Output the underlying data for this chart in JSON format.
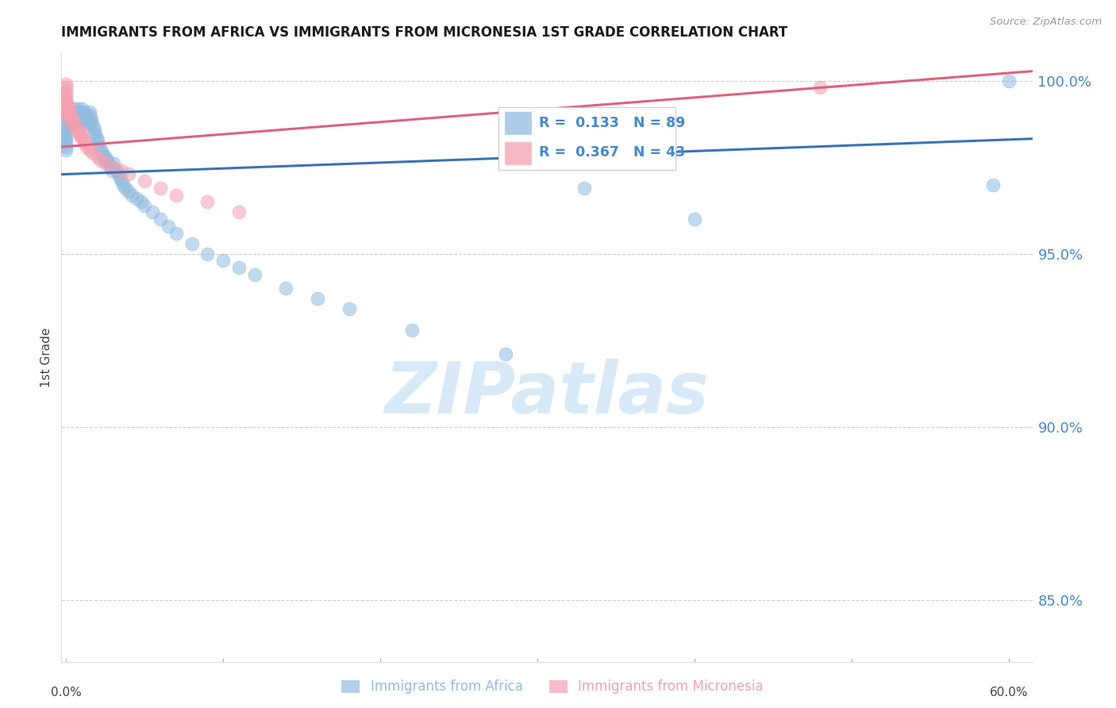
{
  "title": "IMMIGRANTS FROM AFRICA VS IMMIGRANTS FROM MICRONESIA 1ST GRADE CORRELATION CHART",
  "source": "Source: ZipAtlas.com",
  "ylabel": "1st Grade",
  "ytick_values": [
    0.85,
    0.9,
    0.95,
    1.0
  ],
  "ytick_labels": [
    "85.0%",
    "90.0%",
    "95.0%",
    "100.0%"
  ],
  "xlim": [
    -0.003,
    0.615
  ],
  "ylim": [
    0.832,
    1.008
  ],
  "legend_blue_R": "0.133",
  "legend_blue_N": "89",
  "legend_pink_R": "0.367",
  "legend_pink_N": "43",
  "blue_color": "#90bce0",
  "pink_color": "#f4a0b0",
  "blue_line_color": "#3a72b8",
  "pink_line_color": "#e06080",
  "axis_tick_color": "#4488cc",
  "grid_color": "#c8c8c8",
  "title_color": "#1a1a1a",
  "source_color": "#999999",
  "ylabel_color": "#444444",
  "watermark_text": "ZIPatlas",
  "watermark_color": "#d8eaf8",
  "background_color": "#ffffff",
  "legend_label_blue": "Immigrants from Africa",
  "legend_label_pink": "Immigrants from Micronesia",
  "blue_x": [
    0.0,
    0.0,
    0.0,
    0.0,
    0.0,
    0.0,
    0.0,
    0.0,
    0.0,
    0.0,
    0.002,
    0.002,
    0.003,
    0.003,
    0.004,
    0.004,
    0.005,
    0.005,
    0.005,
    0.005,
    0.006,
    0.006,
    0.007,
    0.007,
    0.008,
    0.008,
    0.008,
    0.009,
    0.009,
    0.01,
    0.01,
    0.01,
    0.01,
    0.012,
    0.012,
    0.013,
    0.013,
    0.014,
    0.015,
    0.015,
    0.016,
    0.016,
    0.017,
    0.018,
    0.018,
    0.019,
    0.02,
    0.02,
    0.021,
    0.022,
    0.023,
    0.024,
    0.025,
    0.025,
    0.026,
    0.027,
    0.028,
    0.029,
    0.03,
    0.03,
    0.032,
    0.033,
    0.034,
    0.035,
    0.036,
    0.038,
    0.04,
    0.042,
    0.045,
    0.048,
    0.05,
    0.055,
    0.06,
    0.065,
    0.07,
    0.08,
    0.09,
    0.1,
    0.11,
    0.12,
    0.14,
    0.16,
    0.18,
    0.22,
    0.28,
    0.33,
    0.4,
    0.59,
    0.6
  ],
  "blue_y": [
    0.99,
    0.988,
    0.987,
    0.986,
    0.985,
    0.984,
    0.983,
    0.982,
    0.981,
    0.98,
    0.99,
    0.989,
    0.991,
    0.99,
    0.988,
    0.987,
    0.992,
    0.991,
    0.99,
    0.989,
    0.99,
    0.991,
    0.992,
    0.99,
    0.989,
    0.988,
    0.991,
    0.99,
    0.989,
    0.992,
    0.991,
    0.99,
    0.989,
    0.991,
    0.99,
    0.989,
    0.988,
    0.987,
    0.991,
    0.99,
    0.989,
    0.988,
    0.987,
    0.986,
    0.985,
    0.984,
    0.983,
    0.982,
    0.981,
    0.98,
    0.979,
    0.978,
    0.977,
    0.978,
    0.977,
    0.976,
    0.975,
    0.974,
    0.976,
    0.975,
    0.974,
    0.973,
    0.972,
    0.971,
    0.97,
    0.969,
    0.968,
    0.967,
    0.966,
    0.965,
    0.964,
    0.962,
    0.96,
    0.958,
    0.956,
    0.953,
    0.95,
    0.948,
    0.946,
    0.944,
    0.94,
    0.937,
    0.934,
    0.928,
    0.921,
    0.969,
    0.96,
    0.97,
    1.0
  ],
  "pink_x": [
    0.0,
    0.0,
    0.0,
    0.0,
    0.0,
    0.0,
    0.0,
    0.0,
    0.0,
    0.0,
    0.001,
    0.002,
    0.002,
    0.003,
    0.003,
    0.004,
    0.004,
    0.005,
    0.005,
    0.006,
    0.007,
    0.008,
    0.009,
    0.01,
    0.01,
    0.011,
    0.012,
    0.013,
    0.015,
    0.017,
    0.02,
    0.022,
    0.025,
    0.03,
    0.035,
    0.04,
    0.05,
    0.06,
    0.07,
    0.09,
    0.11,
    0.35,
    0.48
  ],
  "pink_y": [
    0.999,
    0.998,
    0.997,
    0.996,
    0.995,
    0.994,
    0.993,
    0.992,
    0.991,
    0.99,
    0.993,
    0.992,
    0.991,
    0.99,
    0.989,
    0.989,
    0.988,
    0.988,
    0.987,
    0.987,
    0.986,
    0.985,
    0.984,
    0.985,
    0.984,
    0.983,
    0.982,
    0.981,
    0.98,
    0.979,
    0.978,
    0.977,
    0.976,
    0.975,
    0.974,
    0.973,
    0.971,
    0.969,
    0.967,
    0.965,
    0.962,
    0.985,
    0.998
  ]
}
